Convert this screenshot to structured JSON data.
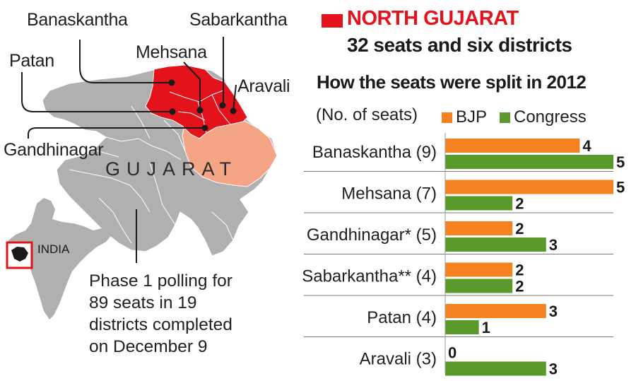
{
  "header": {
    "title": "NORTH GUJARAT",
    "subtitle": "32 seats and six districts",
    "accent_color": "#e3121b"
  },
  "map": {
    "state_label": "GUJARAT",
    "country_label": "INDIA",
    "district_labels": [
      "Banaskantha",
      "Sabarkantha",
      "Mehsana",
      "Patan",
      "Aravali",
      "Gandhinagar"
    ],
    "note_lines": [
      "Phase 1 polling for",
      "89 seats in 19",
      "districts completed",
      "on December 9"
    ],
    "colors": {
      "north_gujarat": "#e3121b",
      "phase1": "#b0b0b0",
      "other": "#f4a585"
    }
  },
  "chart_data": {
    "type": "bar",
    "orientation": "horizontal",
    "title": "How the seats were split in 2012",
    "subtitle": "(No. of seats)",
    "categories": [
      "Banaskantha (9)",
      "Mehsana (7)",
      "Gandhinagar* (5)",
      "Sabarkantha** (4)",
      "Patan (4)",
      "Aravali (3)"
    ],
    "series": [
      {
        "name": "BJP",
        "color": "#f58220",
        "values": [
          4,
          5,
          2,
          2,
          3,
          0
        ]
      },
      {
        "name": "Congress",
        "color": "#5a9a2a",
        "values": [
          5,
          2,
          3,
          2,
          1,
          3
        ]
      }
    ],
    "xlim": [
      0,
      5
    ],
    "legend_position": "top",
    "grid": false
  }
}
